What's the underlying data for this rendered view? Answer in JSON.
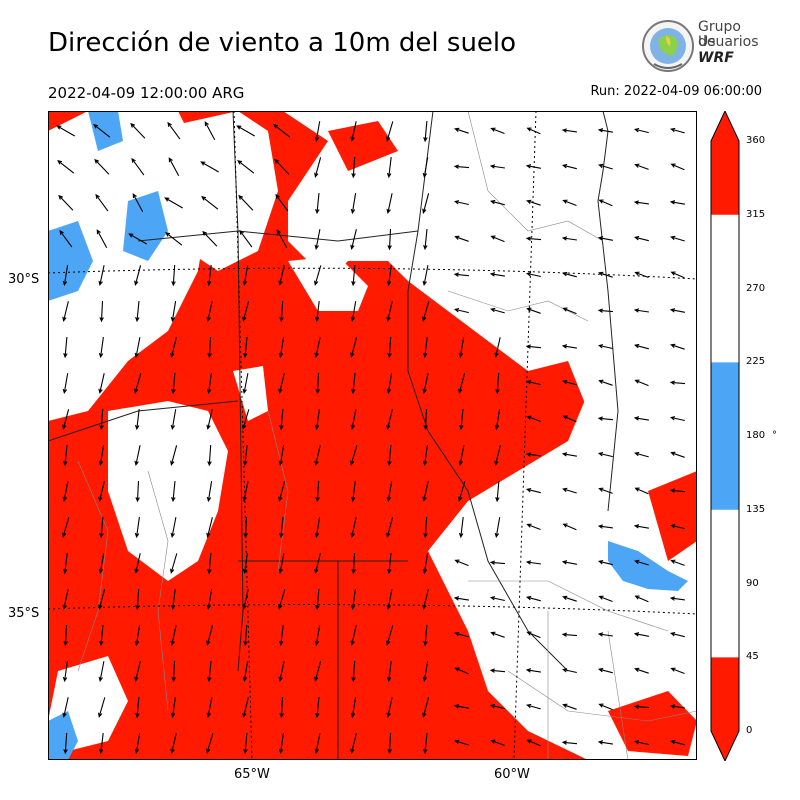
{
  "header": {
    "title": "Dirección de viento a 10m del suelo",
    "valid_time": "2022-04-09 12:00:00 ARG",
    "run_time": "Run: 2022-04-09 06:00:00"
  },
  "logo": {
    "line1": "Grupo de",
    "line2": "Usuarios",
    "line3": "WRF"
  },
  "map": {
    "lat_labels": [
      "30°S",
      "35°S"
    ],
    "lon_labels": [
      "65°W",
      "60°W"
    ],
    "fill_colors": {
      "sector_north": "#ff1a00",
      "sector_sw": "#4da6f5",
      "sector_other": "#ffffff"
    }
  },
  "colorbar": {
    "unit": "°",
    "ticks": [
      "0",
      "45",
      "90",
      "135",
      "180",
      "225",
      "270",
      "315",
      "360"
    ],
    "bands": [
      {
        "from": 0,
        "to": 45,
        "color": "#ff1a00"
      },
      {
        "from": 45,
        "to": 135,
        "color": "#ffffff"
      },
      {
        "from": 135,
        "to": 225,
        "color": "#4da6f5"
      },
      {
        "from": 225,
        "to": 315,
        "color": "#ffffff"
      },
      {
        "from": 315,
        "to": 360,
        "color": "#ff1a00"
      }
    ]
  }
}
